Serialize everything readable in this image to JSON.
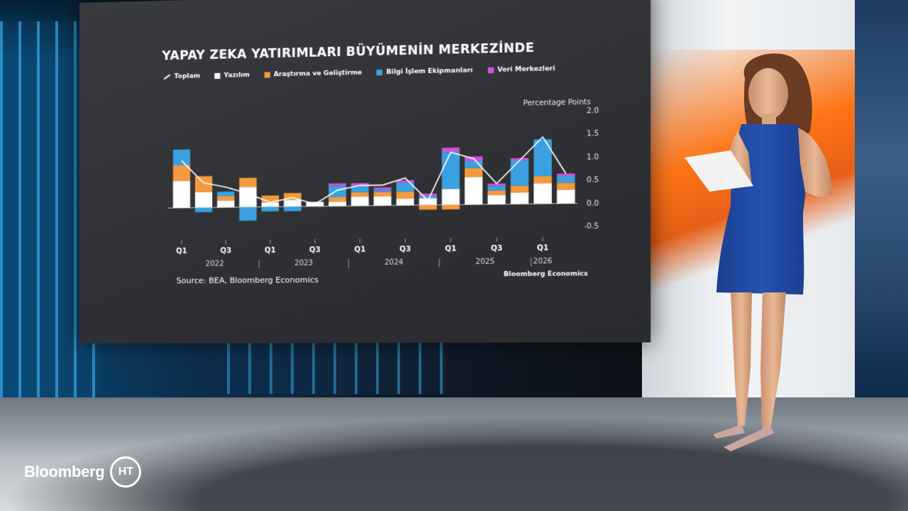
{
  "broadcast": {
    "logo_text": "Bloomberg",
    "badge_text": "HT"
  },
  "chart_data": {
    "type": "bar",
    "stacked": true,
    "title": "YAPAY ZEKA YATIRIMLARI BÜYÜMENİN MERKEZİNDE",
    "unit_label": "Percentage Points",
    "source": "Source: BEA, Bloomberg Economics",
    "brand_credit": "Bloomberg Economics",
    "ylim": [
      -0.5,
      2.0
    ],
    "y_ticks": [
      "2.0",
      "1.5",
      "1.0",
      "0.5",
      "0.0",
      "-0.5"
    ],
    "y_tick_values": [
      2.0,
      1.5,
      1.0,
      0.5,
      0.0,
      -0.5
    ],
    "quarter_labels": [
      "Q1",
      "Q3",
      "Q1",
      "Q3",
      "Q1",
      "Q3",
      "Q1",
      "Q3",
      "Q1"
    ],
    "quarter_label_index": [
      0,
      2,
      4,
      6,
      8,
      10,
      12,
      14,
      16
    ],
    "year_labels": [
      "2022",
      "2023",
      "2024",
      "2025",
      "2026"
    ],
    "year_label_center": [
      1.5,
      5.5,
      9.5,
      13.5,
      16
    ],
    "x": [
      "2022 Q1",
      "2022 Q2",
      "2022 Q3",
      "2022 Q4",
      "2023 Q1",
      "2023 Q2",
      "2023 Q3",
      "2023 Q4",
      "2024 Q1",
      "2024 Q2",
      "2024 Q3",
      "2024 Q4",
      "2025 Q1",
      "2025 Q2",
      "2025 Q3",
      "2025 Q4",
      "2026 Q1",
      "2026 Q2"
    ],
    "series": [
      {
        "name": "Yazılım",
        "color": "#ffffff",
        "values": [
          0.6,
          0.35,
          0.15,
          0.45,
          0.1,
          0.15,
          0.1,
          0.1,
          0.2,
          0.2,
          0.15,
          0.15,
          0.35,
          0.6,
          0.2,
          0.25,
          0.45,
          0.3
        ]
      },
      {
        "name": "Araştırma ve Geliştirme",
        "color": "#f59a3c",
        "values": [
          0.35,
          0.35,
          0.1,
          0.2,
          0.15,
          0.15,
          0.0,
          0.1,
          0.1,
          0.1,
          0.15,
          -0.1,
          -0.1,
          0.2,
          0.1,
          0.15,
          0.15,
          0.15
        ]
      },
      {
        "name": "Bilgi İşlem Ekipmanları",
        "color": "#3aa0e0",
        "values": [
          0.35,
          -0.1,
          0.1,
          -0.3,
          -0.1,
          -0.1,
          0.0,
          0.25,
          0.15,
          0.05,
          0.2,
          0.05,
          0.8,
          0.15,
          0.1,
          0.55,
          0.8,
          0.15
        ]
      },
      {
        "name": "Veri Merkezleri",
        "color": "#cc55dd",
        "values": [
          0.0,
          0.0,
          0.0,
          0.0,
          0.0,
          0.0,
          0.0,
          0.05,
          0.05,
          0.05,
          0.05,
          0.05,
          0.1,
          0.1,
          0.05,
          0.05,
          0.0,
          0.05
        ]
      }
    ],
    "total": {
      "name": "Toplam",
      "color": "#ffffff",
      "values": [
        1.05,
        0.55,
        0.45,
        0.3,
        0.1,
        0.2,
        0.05,
        0.35,
        0.45,
        0.45,
        0.6,
        0.1,
        1.15,
        1.0,
        0.45,
        0.95,
        1.45,
        0.65
      ]
    },
    "legend_order": [
      "Toplam",
      "Yazılım",
      "Araştırma ve Geliştirme",
      "Bilgi İşlem Ekipmanları",
      "Veri Merkezleri"
    ],
    "legend_position": "top-left",
    "grid": false
  }
}
